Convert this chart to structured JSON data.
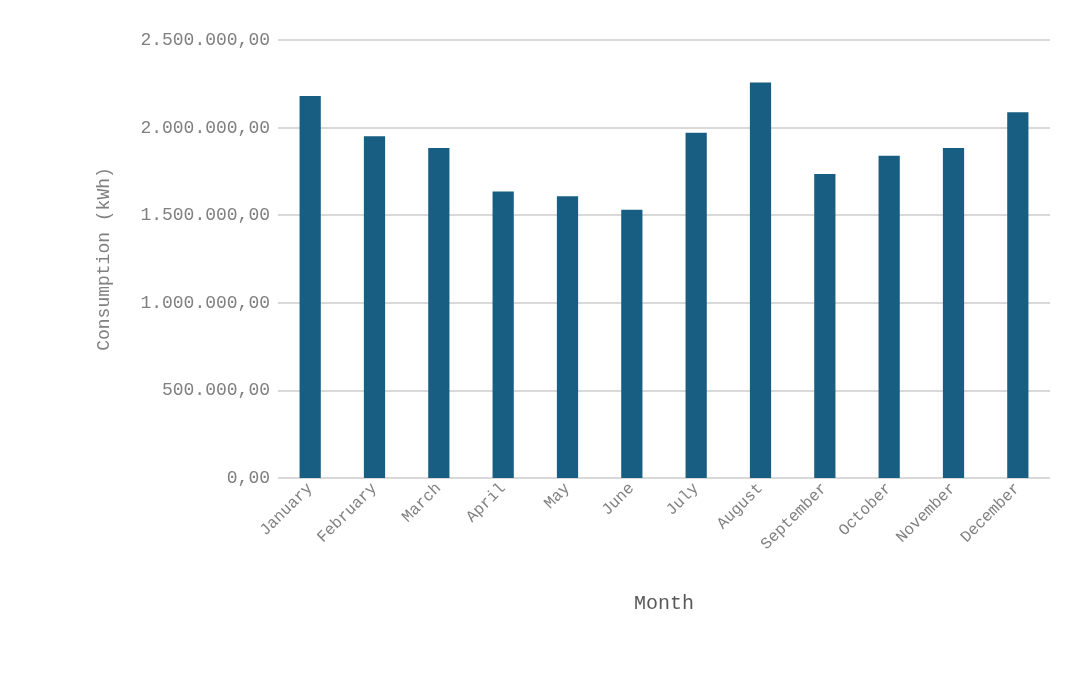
{
  "chart_data": {
    "type": "bar",
    "xlabel": "Month",
    "ylabel": "Consumption (kWh)",
    "categories": [
      "January",
      "February",
      "March",
      "April",
      "May",
      "June",
      "July",
      "August",
      "September",
      "October",
      "November",
      "December"
    ],
    "values": [
      2180000,
      1950000,
      1883000,
      1635000,
      1608000,
      1531000,
      1971000,
      2258000,
      1735000,
      1839000,
      1883000,
      2087000
    ],
    "color": "#175e82",
    "ylim": [
      0,
      2500000
    ],
    "yticks": [
      {
        "value": 0,
        "label": "0,00"
      },
      {
        "value": 500000,
        "label": "500.000,00"
      },
      {
        "value": 1000000,
        "label": "1.000.000,00"
      },
      {
        "value": 1500000,
        "label": "1.500.000,00"
      },
      {
        "value": 2000000,
        "label": "2.000.000,00"
      },
      {
        "value": 2500000,
        "label": "2.500.000,00"
      }
    ],
    "grid": "y"
  }
}
